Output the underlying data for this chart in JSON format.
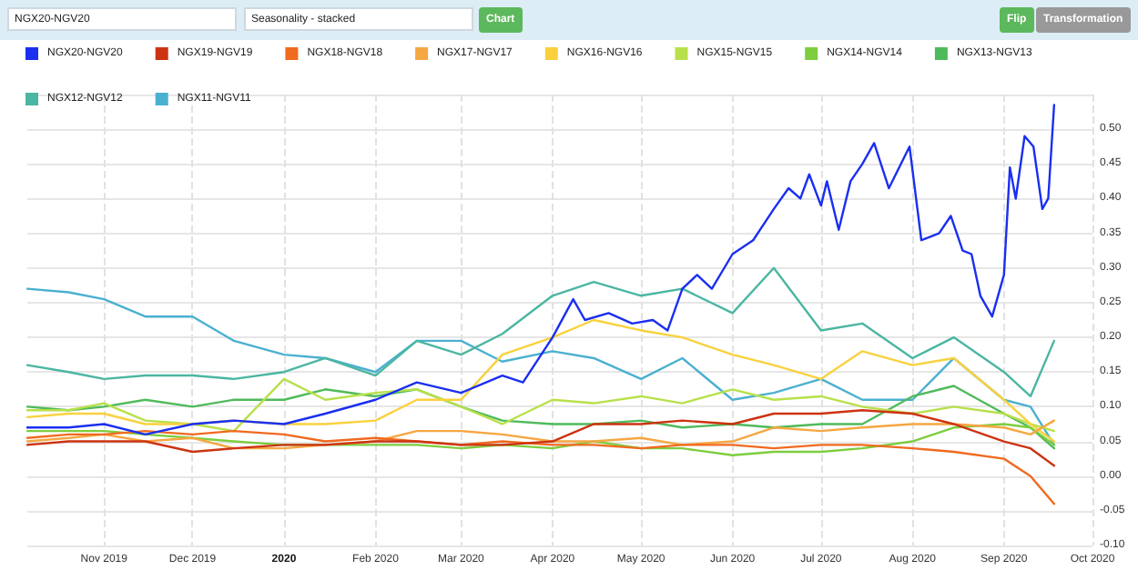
{
  "chart_data": {
    "type": "line",
    "annotations": [
      "NGX20-NGV20",
      "Seasonality - stacked",
      "Chart",
      "Flip",
      "Transformation"
    ],
    "x": [
      "2019-10-06",
      "2019-10-20",
      "2019-11-01",
      "2019-11-15",
      "2019-12-01",
      "2019-12-15",
      "2020-01-01",
      "2020-01-15",
      "2020-02-01",
      "2020-02-15",
      "2020-03-01",
      "2020-03-15",
      "2020-04-01",
      "2020-04-15",
      "2020-05-01",
      "2020-05-15",
      "2020-06-01",
      "2020-06-15",
      "2020-07-01",
      "2020-07-15",
      "2020-08-01",
      "2020-08-15",
      "2020-09-01",
      "2020-09-10",
      "2020-09-18"
    ],
    "series": [
      {
        "name": "NGX20-NGV20",
        "color": "#1a2ff0",
        "x": [
          "2019-10-06",
          "2019-10-20",
          "2019-11-01",
          "2019-11-15",
          "2019-12-01",
          "2019-12-15",
          "2020-01-01",
          "2020-01-15",
          "2020-02-01",
          "2020-02-15",
          "2020-03-01",
          "2020-03-15",
          "2020-03-22",
          "2020-04-01",
          "2020-04-08",
          "2020-04-12",
          "2020-04-20",
          "2020-04-28",
          "2020-05-05",
          "2020-05-10",
          "2020-05-15",
          "2020-05-20",
          "2020-05-25",
          "2020-06-01",
          "2020-06-08",
          "2020-06-15",
          "2020-06-20",
          "2020-06-24",
          "2020-06-27",
          "2020-07-01",
          "2020-07-03",
          "2020-07-07",
          "2020-07-11",
          "2020-07-15",
          "2020-07-19",
          "2020-07-24",
          "2020-07-31",
          "2020-08-04",
          "2020-08-10",
          "2020-08-14",
          "2020-08-18",
          "2020-08-21",
          "2020-08-24",
          "2020-08-28",
          "2020-09-01",
          "2020-09-03",
          "2020-09-05",
          "2020-09-08",
          "2020-09-11",
          "2020-09-14",
          "2020-09-16",
          "2020-09-18"
        ],
        "values": [
          0.07,
          0.07,
          0.075,
          0.06,
          0.075,
          0.08,
          0.075,
          0.09,
          0.11,
          0.135,
          0.12,
          0.145,
          0.135,
          0.2,
          0.255,
          0.225,
          0.235,
          0.22,
          0.225,
          0.21,
          0.27,
          0.29,
          0.27,
          0.32,
          0.34,
          0.385,
          0.415,
          0.4,
          0.435,
          0.39,
          0.425,
          0.355,
          0.425,
          0.45,
          0.48,
          0.415,
          0.475,
          0.34,
          0.35,
          0.375,
          0.325,
          0.32,
          0.26,
          0.23,
          0.29,
          0.445,
          0.4,
          0.49,
          0.475,
          0.385,
          0.4,
          0.535
        ]
      },
      {
        "name": "NGX19-NGV19",
        "color": "#cc3311",
        "values": [
          0.045,
          0.05,
          0.05,
          0.05,
          0.035,
          0.04,
          0.045,
          0.045,
          0.05,
          0.05,
          0.045,
          0.045,
          0.05,
          0.075,
          0.075,
          0.08,
          0.075,
          0.09,
          0.09,
          0.095,
          0.09,
          0.075,
          0.05,
          0.04,
          0.015
        ]
      },
      {
        "name": "NGX18-NGV18",
        "color": "#f06a1f",
        "values": [
          0.055,
          0.06,
          0.06,
          0.065,
          0.06,
          0.065,
          0.06,
          0.05,
          0.055,
          0.05,
          0.045,
          0.05,
          0.045,
          0.045,
          0.04,
          0.045,
          0.045,
          0.04,
          0.045,
          0.045,
          0.04,
          0.035,
          0.025,
          0.0,
          -0.04
        ]
      },
      {
        "name": "NGX17-NGV17",
        "color": "#f5a742",
        "values": [
          0.05,
          0.055,
          0.06,
          0.05,
          0.055,
          0.04,
          0.04,
          0.045,
          0.05,
          0.065,
          0.065,
          0.06,
          0.05,
          0.05,
          0.055,
          0.045,
          0.05,
          0.07,
          0.065,
          0.07,
          0.075,
          0.075,
          0.07,
          0.06,
          0.08
        ]
      },
      {
        "name": "NGX16-NGV16",
        "color": "#f9d13e",
        "values": [
          0.085,
          0.09,
          0.09,
          0.075,
          0.075,
          0.08,
          0.075,
          0.075,
          0.08,
          0.11,
          0.11,
          0.175,
          0.2,
          0.225,
          0.21,
          0.2,
          0.175,
          0.16,
          0.14,
          0.18,
          0.16,
          0.17,
          0.11,
          0.075,
          0.05
        ]
      },
      {
        "name": "NGX15-NGV15",
        "color": "#b8e04a",
        "values": [
          0.095,
          0.095,
          0.105,
          0.08,
          0.075,
          0.065,
          0.14,
          0.11,
          0.12,
          0.125,
          0.1,
          0.075,
          0.11,
          0.105,
          0.115,
          0.105,
          0.125,
          0.11,
          0.115,
          0.1,
          0.09,
          0.1,
          0.09,
          0.075,
          0.065
        ]
      },
      {
        "name": "NGX14-NGV14",
        "color": "#7dcd3f",
        "values": [
          0.065,
          0.065,
          0.065,
          0.06,
          0.055,
          0.05,
          0.045,
          0.045,
          0.045,
          0.045,
          0.04,
          0.045,
          0.04,
          0.05,
          0.04,
          0.04,
          0.03,
          0.035,
          0.035,
          0.04,
          0.05,
          0.07,
          0.075,
          0.07,
          0.045
        ]
      },
      {
        "name": "NGX13-NGV13",
        "color": "#4fba5a",
        "values": [
          0.1,
          0.095,
          0.1,
          0.11,
          0.1,
          0.11,
          0.11,
          0.125,
          0.115,
          0.125,
          0.1,
          0.08,
          0.075,
          0.075,
          0.08,
          0.07,
          0.075,
          0.07,
          0.075,
          0.075,
          0.115,
          0.13,
          0.09,
          0.07,
          0.04
        ]
      },
      {
        "name": "NGX12-NGV12",
        "color": "#4bb6a1",
        "values": [
          0.16,
          0.15,
          0.14,
          0.145,
          0.145,
          0.14,
          0.15,
          0.17,
          0.145,
          0.195,
          0.175,
          0.205,
          0.26,
          0.28,
          0.26,
          0.27,
          0.235,
          0.3,
          0.21,
          0.22,
          0.17,
          0.2,
          0.15,
          0.115,
          0.195
        ]
      },
      {
        "name": "NGX11-NGV11",
        "color": "#4bb0d0",
        "values": [
          0.27,
          0.265,
          0.255,
          0.23,
          0.23,
          0.195,
          0.175,
          0.17,
          0.15,
          0.195,
          0.195,
          0.165,
          0.18,
          0.17,
          0.14,
          0.17,
          0.11,
          0.12,
          0.14,
          0.11,
          0.11,
          0.17,
          0.11,
          0.1,
          0.045
        ]
      }
    ],
    "xlim": [
      "2019-10-06",
      "2020-10-01"
    ],
    "xticks": [
      {
        "value": "2019-11-01",
        "label": "Nov 2019"
      },
      {
        "value": "2019-12-01",
        "label": "Dec 2019"
      },
      {
        "value": "2020-01-01",
        "label": "2020"
      },
      {
        "value": "2020-02-01",
        "label": "Feb 2020"
      },
      {
        "value": "2020-03-01",
        "label": "Mar 2020"
      },
      {
        "value": "2020-04-01",
        "label": "Apr 2020"
      },
      {
        "value": "2020-05-01",
        "label": "May 2020"
      },
      {
        "value": "2020-06-01",
        "label": "Jun 2020"
      },
      {
        "value": "2020-07-01",
        "label": "Jul 2020"
      },
      {
        "value": "2020-08-01",
        "label": "Aug 2020"
      },
      {
        "value": "2020-09-01",
        "label": "Sep 2020"
      },
      {
        "value": "2020-10-01",
        "label": "Oct 2020"
      }
    ],
    "ylim": [
      -0.1,
      0.55
    ],
    "yticks": [
      {
        "value": -0.1,
        "label": "-0.10"
      },
      {
        "value": -0.05,
        "label": "-0.05"
      },
      {
        "value": 0,
        "label": "0.00"
      },
      {
        "value": 0.05,
        "label": "0.05"
      },
      {
        "value": 0.1,
        "label": "0.10"
      },
      {
        "value": 0.15,
        "label": "0.15"
      },
      {
        "value": 0.2,
        "label": "0.20"
      },
      {
        "value": 0.25,
        "label": "0.25"
      },
      {
        "value": 0.3,
        "label": "0.30"
      },
      {
        "value": 0.35,
        "label": "0.35"
      },
      {
        "value": 0.4,
        "label": "0.40"
      },
      {
        "value": 0.45,
        "label": "0.45"
      },
      {
        "value": 0.5,
        "label": "0.50"
      }
    ],
    "grid": true,
    "legend": "top left",
    "marker": "none",
    "line_style": "solid"
  }
}
